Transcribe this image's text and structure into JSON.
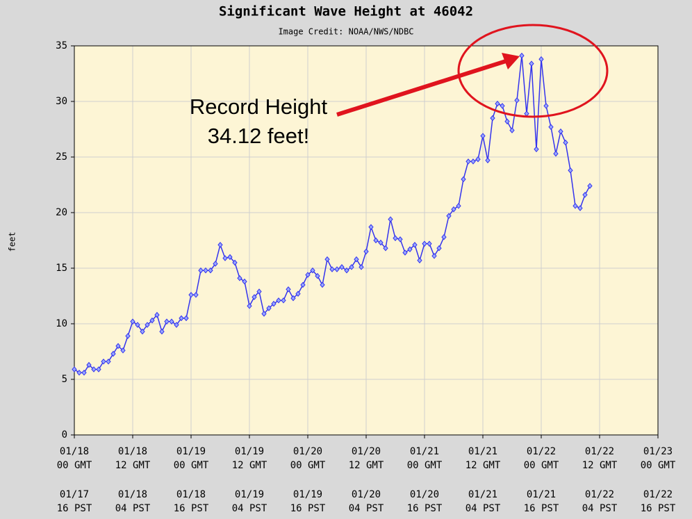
{
  "chart_data": {
    "type": "line",
    "title": "Significant Wave Height at 46042",
    "subtitle": "Image Credit: NOAA/NWS/NDBC",
    "y_label": "feet",
    "annotation": [
      "Record Height",
      "34.12 feet!"
    ],
    "xlim": [
      0,
      120
    ],
    "ylim": [
      0,
      35
    ],
    "yticks": [
      0,
      5,
      10,
      15,
      20,
      25,
      30,
      35
    ],
    "grid": true,
    "xticks": [
      {
        "value": 0,
        "label": [
          "01/18",
          "00 GMT"
        ]
      },
      {
        "value": 12,
        "label": [
          "01/18",
          "12 GMT"
        ]
      },
      {
        "value": 24,
        "label": [
          "01/19",
          "00 GMT"
        ]
      },
      {
        "value": 36,
        "label": [
          "01/19",
          "12 GMT"
        ]
      },
      {
        "value": 48,
        "label": [
          "01/20",
          "00 GMT"
        ]
      },
      {
        "value": 60,
        "label": [
          "01/20",
          "12 GMT"
        ]
      },
      {
        "value": 72,
        "label": [
          "01/21",
          "00 GMT"
        ]
      },
      {
        "value": 84,
        "label": [
          "01/21",
          "12 GMT"
        ]
      },
      {
        "value": 96,
        "label": [
          "01/22",
          "00 GMT"
        ]
      },
      {
        "value": 108,
        "label": [
          "01/22",
          "12 GMT"
        ]
      },
      {
        "value": 120,
        "label": [
          "01/23",
          "00 GMT"
        ]
      }
    ],
    "xticks_pst": [
      {
        "value": 0,
        "label": [
          "01/17",
          "16 PST"
        ]
      },
      {
        "value": 12,
        "label": [
          "01/18",
          "04 PST"
        ]
      },
      {
        "value": 24,
        "label": [
          "01/18",
          "16 PST"
        ]
      },
      {
        "value": 36,
        "label": [
          "01/19",
          "04 PST"
        ]
      },
      {
        "value": 48,
        "label": [
          "01/19",
          "16 PST"
        ]
      },
      {
        "value": 60,
        "label": [
          "01/20",
          "04 PST"
        ]
      },
      {
        "value": 72,
        "label": [
          "01/20",
          "16 PST"
        ]
      },
      {
        "value": 84,
        "label": [
          "01/21",
          "04 PST"
        ]
      },
      {
        "value": 96,
        "label": [
          "01/21",
          "16 PST"
        ]
      },
      {
        "value": 108,
        "label": [
          "01/22",
          "04 PST"
        ]
      },
      {
        "value": 120,
        "label": [
          "01/22",
          "16 PST"
        ]
      }
    ],
    "x": [
      0,
      1,
      2,
      3,
      4,
      5,
      6,
      7,
      8,
      9,
      10,
      11,
      12,
      13,
      14,
      15,
      16,
      17,
      18,
      19,
      20,
      21,
      22,
      23,
      24,
      25,
      26,
      27,
      28,
      29,
      30,
      31,
      32,
      33,
      34,
      35,
      36,
      37,
      38,
      39,
      40,
      41,
      42,
      43,
      44,
      45,
      46,
      47,
      48,
      49,
      50,
      51,
      52,
      53,
      54,
      55,
      56,
      57,
      58,
      59,
      60,
      61,
      62,
      63,
      64,
      65,
      66,
      67,
      68,
      69,
      70,
      71,
      72,
      73,
      74,
      75,
      76,
      77,
      78,
      79,
      80,
      81,
      82,
      83,
      84,
      85,
      86,
      87,
      88,
      89,
      90,
      91,
      92,
      93,
      94,
      95,
      96,
      97,
      98,
      99,
      100,
      101,
      102,
      103,
      104,
      105,
      106
    ],
    "series": [
      {
        "name": "Significant Wave Height",
        "color": "#3333ee",
        "values": [
          5.9,
          5.6,
          5.6,
          6.3,
          5.9,
          5.9,
          6.6,
          6.6,
          7.3,
          8.0,
          7.6,
          8.9,
          10.2,
          9.9,
          9.3,
          9.9,
          10.3,
          10.8,
          9.3,
          10.2,
          10.2,
          9.9,
          10.5,
          10.5,
          12.6,
          12.6,
          14.8,
          14.8,
          14.8,
          15.4,
          17.1,
          15.9,
          16.0,
          15.5,
          14.1,
          13.8,
          11.6,
          12.4,
          12.9,
          10.9,
          11.4,
          11.8,
          12.1,
          12.1,
          13.1,
          12.3,
          12.7,
          13.5,
          14.4,
          14.8,
          14.3,
          13.5,
          15.8,
          14.9,
          14.9,
          15.1,
          14.8,
          15.1,
          15.8,
          15.1,
          16.5,
          18.7,
          17.5,
          17.3,
          16.8,
          19.4,
          17.7,
          17.6,
          16.4,
          16.7,
          17.1,
          15.7,
          17.2,
          17.2,
          16.1,
          16.8,
          17.8,
          19.7,
          20.3,
          20.6,
          23.0,
          24.6,
          24.6,
          24.8,
          26.9,
          24.7,
          28.5,
          29.8,
          29.6,
          28.2,
          27.4,
          30.1,
          34.12,
          28.9,
          33.4,
          25.7,
          33.8,
          29.6,
          27.7,
          25.3,
          27.3,
          26.3,
          23.8,
          20.6,
          20.4,
          21.6,
          22.4
        ]
      }
    ]
  }
}
